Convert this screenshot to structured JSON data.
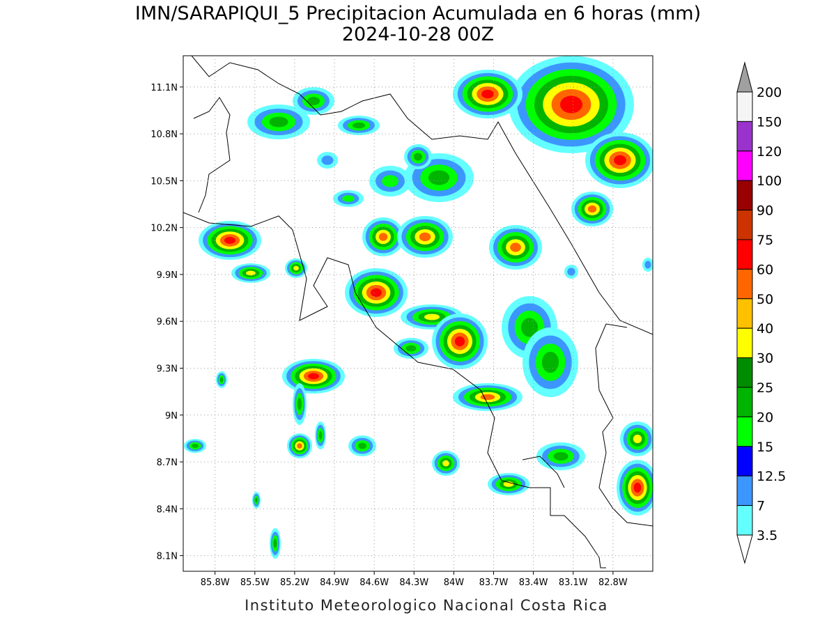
{
  "title": [
    "IMN/SARAPIQUI_5 Precipitacion Acumulada en 6 horas (mm)",
    "2024-10-28 00Z"
  ],
  "map": {
    "ylim": [
      8.0,
      11.3
    ],
    "xlim": [
      -86.04,
      -82.5
    ],
    "lat_ticks": [
      {
        "value": 11.1,
        "label": "11.1N"
      },
      {
        "value": 10.8,
        "label": "10.8N"
      },
      {
        "value": 10.5,
        "label": "10.5N"
      },
      {
        "value": 10.2,
        "label": "10.2N"
      },
      {
        "value": 9.9,
        "label": "9.9N"
      },
      {
        "value": 9.6,
        "label": "9.6N"
      },
      {
        "value": 9.3,
        "label": "9.3N"
      },
      {
        "value": 9.0,
        "label": "9N"
      },
      {
        "value": 8.7,
        "label": "8.7N"
      },
      {
        "value": 8.4,
        "label": "8.4N"
      },
      {
        "value": 8.1,
        "label": "8.1N"
      }
    ],
    "lon_ticks": [
      {
        "value": -85.8,
        "label": "85.8W"
      },
      {
        "value": -85.5,
        "label": "85.5W"
      },
      {
        "value": -85.2,
        "label": "85.2W"
      },
      {
        "value": -84.9,
        "label": "84.9W"
      },
      {
        "value": -84.6,
        "label": "84.6W"
      },
      {
        "value": -84.3,
        "label": "84.3W"
      },
      {
        "value": -84.0,
        "label": "84W"
      },
      {
        "value": -83.7,
        "label": "83.7W"
      },
      {
        "value": -83.4,
        "label": "83.4W"
      },
      {
        "value": -83.1,
        "label": "83.1W"
      },
      {
        "value": -82.8,
        "label": "82.8W"
      }
    ]
  },
  "colorbar": {
    "labels": [
      200,
      150,
      120,
      100,
      90,
      75,
      60,
      50,
      40,
      30,
      25,
      20,
      15,
      12.5,
      7,
      3.5
    ],
    "colors": [
      "#f5f5f5",
      "#9933cc",
      "#ff00ff",
      "#990000",
      "#cc3300",
      "#ff0000",
      "#ff6600",
      "#ffc000",
      "#ffff00",
      "#008c00",
      "#00b400",
      "#00ff00",
      "#0000ff",
      "#3c96ff",
      "#64ffff"
    ],
    "over_color": "#a0a0a0"
  },
  "footer": "Instituto Meteorologico Nacional Costa Rica"
}
